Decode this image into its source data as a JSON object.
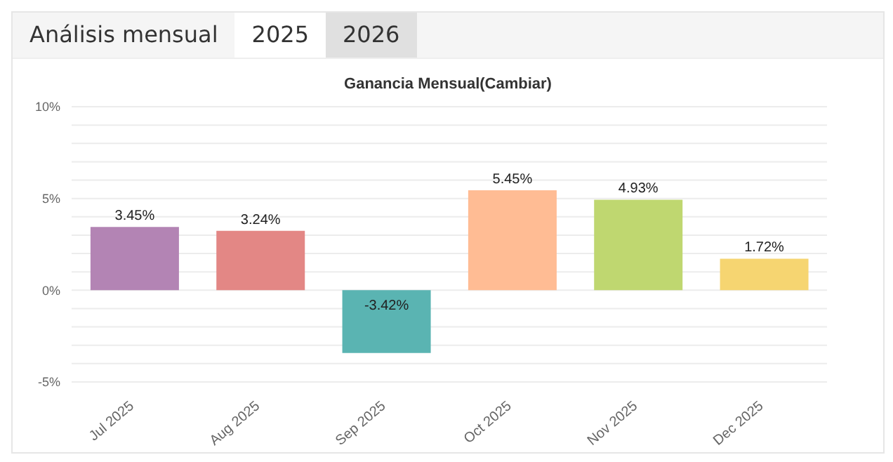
{
  "chart_data": {
    "type": "bar",
    "title": "Ganancia Mensual(Cambiar)",
    "annotations": [
      "Análisis mensual",
      "2025",
      "2026"
    ],
    "categories": [
      "Jul 2025",
      "Aug 2025",
      "Sep 2025",
      "Oct 2025",
      "Nov 2025",
      "Dec 2025"
    ],
    "values": [
      3.45,
      3.24,
      -3.42,
      5.45,
      4.93,
      1.72
    ],
    "value_labels": [
      "3.45%",
      "3.24%",
      "-3.42%",
      "5.45%",
      "4.93%",
      "1.72%"
    ],
    "colors": [
      "#b384b4",
      "#e38785",
      "#5ab4b2",
      "#ffbc94",
      "#bfd770",
      "#f6d571"
    ],
    "ylim": [
      -5,
      10
    ],
    "yticks": [
      {
        "value": -5,
        "label": "-5%"
      },
      {
        "value": -4,
        "label": null
      },
      {
        "value": -3,
        "label": null
      },
      {
        "value": -2,
        "label": null
      },
      {
        "value": -1,
        "label": null
      },
      {
        "value": 0,
        "label": "0%"
      },
      {
        "value": 1,
        "label": null
      },
      {
        "value": 2,
        "label": null
      },
      {
        "value": 3,
        "label": null
      },
      {
        "value": 4,
        "label": null
      },
      {
        "value": 5,
        "label": "5%"
      },
      {
        "value": 6,
        "label": null
      },
      {
        "value": 7,
        "label": null
      },
      {
        "value": 8,
        "label": null
      },
      {
        "value": 9,
        "label": null
      },
      {
        "value": 10,
        "label": "10%"
      }
    ],
    "grid": "y"
  }
}
